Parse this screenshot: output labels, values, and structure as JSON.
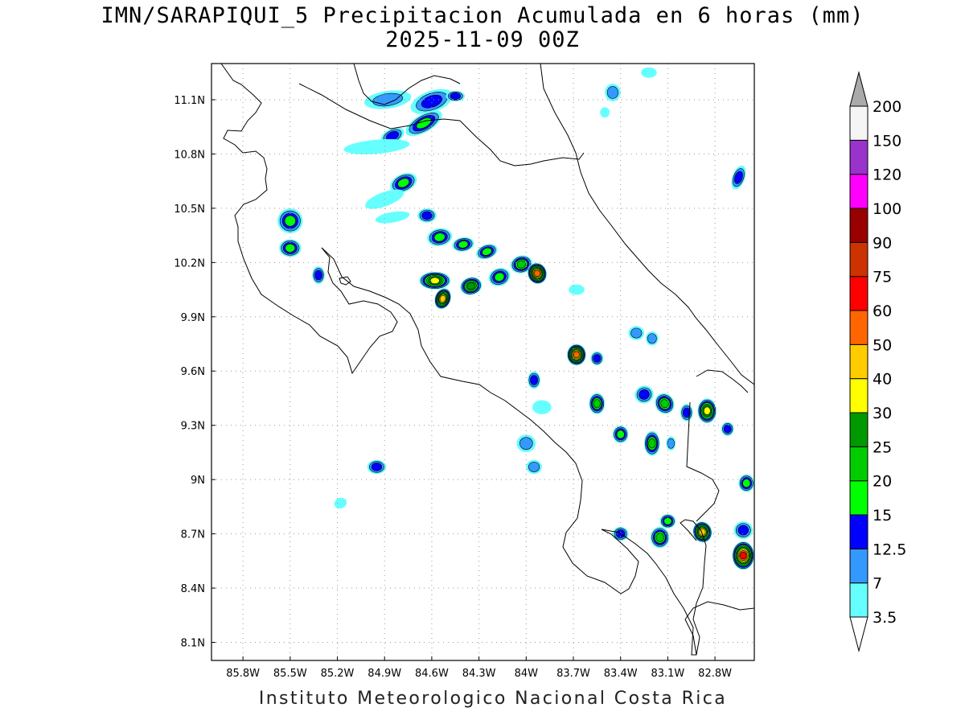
{
  "title": {
    "line1": "IMN/SARAPIQUI_5 Precipitacion Acumulada en 6 horas (mm)",
    "line2": "2025-11-09 00Z"
  },
  "footer": "Instituto Meteorologico Nacional Costa Rica",
  "map": {
    "lon_range": [
      -86.0,
      -82.55
    ],
    "lat_range": [
      8.0,
      11.3
    ],
    "lon_ticks": [
      {
        "value": -85.8,
        "label": "85.8W"
      },
      {
        "value": -85.5,
        "label": "85.5W"
      },
      {
        "value": -85.2,
        "label": "85.2W"
      },
      {
        "value": -84.9,
        "label": "84.9W"
      },
      {
        "value": -84.6,
        "label": "84.6W"
      },
      {
        "value": -84.3,
        "label": "84.3W"
      },
      {
        "value": -84.0,
        "label": "84W"
      },
      {
        "value": -83.7,
        "label": "83.7W"
      },
      {
        "value": -83.4,
        "label": "83.4W"
      },
      {
        "value": -83.1,
        "label": "83.1W"
      },
      {
        "value": -82.8,
        "label": "82.8W"
      }
    ],
    "lat_ticks": [
      {
        "value": 11.1,
        "label": "11.1N"
      },
      {
        "value": 10.8,
        "label": "10.8N"
      },
      {
        "value": 10.5,
        "label": "10.5N"
      },
      {
        "value": 10.2,
        "label": "10.2N"
      },
      {
        "value": 9.9,
        "label": "9.9N"
      },
      {
        "value": 9.6,
        "label": "9.6N"
      },
      {
        "value": 9.3,
        "label": "9.3N"
      },
      {
        "value": 9.0,
        "label": "9N"
      },
      {
        "value": 8.7,
        "label": "8.7N"
      },
      {
        "value": 8.4,
        "label": "8.4N"
      },
      {
        "value": 8.1,
        "label": "8.1N"
      }
    ],
    "grid": true
  },
  "colorbar": {
    "levels": [
      "3.5",
      "7",
      "12.5",
      "15",
      "20",
      "25",
      "30",
      "40",
      "50",
      "60",
      "75",
      "90",
      "100",
      "120",
      "150",
      "200"
    ],
    "colors": [
      "#66ffff",
      "#3399ff",
      "#0000ff",
      "#00ff00",
      "#00cc00",
      "#009900",
      "#ffff00",
      "#ffcc00",
      "#ff6600",
      "#ff0000",
      "#cc3300",
      "#990000",
      "#ff00ff",
      "#9933cc",
      "#f5f5f5"
    ],
    "over_color": "#aaaaaa",
    "under_color": "#ffffff"
  },
  "precip_cells": [
    {
      "lon": -84.88,
      "lat": 11.1,
      "rx": 0.14,
      "ry": 0.04,
      "rot": -8,
      "level": 1
    },
    {
      "lon": -84.6,
      "lat": 11.09,
      "rx": 0.13,
      "ry": 0.05,
      "rot": -20,
      "level": 2
    },
    {
      "lon": -84.45,
      "lat": 11.12,
      "rx": 0.05,
      "ry": 0.02,
      "rot": 0,
      "level": 2
    },
    {
      "lon": -84.65,
      "lat": 10.97,
      "rx": 0.12,
      "ry": 0.04,
      "rot": -30,
      "level": 3
    },
    {
      "lon": -84.85,
      "lat": 10.9,
      "rx": 0.07,
      "ry": 0.03,
      "rot": -25,
      "level": 2
    },
    {
      "lon": -84.95,
      "lat": 10.84,
      "rx": 0.2,
      "ry": 0.03,
      "rot": -5,
      "level": 0
    },
    {
      "lon": -84.78,
      "lat": 10.64,
      "rx": 0.08,
      "ry": 0.04,
      "rot": -25,
      "level": 3
    },
    {
      "lon": -84.9,
      "lat": 10.55,
      "rx": 0.12,
      "ry": 0.03,
      "rot": -20,
      "level": 0
    },
    {
      "lon": -85.5,
      "lat": 10.43,
      "rx": 0.07,
      "ry": 0.06,
      "rot": 0,
      "level": 3
    },
    {
      "lon": -85.5,
      "lat": 10.28,
      "rx": 0.06,
      "ry": 0.04,
      "rot": 0,
      "level": 3
    },
    {
      "lon": -85.32,
      "lat": 10.13,
      "rx": 0.03,
      "ry": 0.04,
      "rot": 0,
      "level": 2
    },
    {
      "lon": -84.63,
      "lat": 10.46,
      "rx": 0.05,
      "ry": 0.03,
      "rot": 0,
      "level": 2
    },
    {
      "lon": -84.85,
      "lat": 10.45,
      "rx": 0.1,
      "ry": 0.02,
      "rot": -10,
      "level": 0
    },
    {
      "lon": -84.55,
      "lat": 10.34,
      "rx": 0.07,
      "ry": 0.04,
      "rot": -10,
      "level": 3
    },
    {
      "lon": -84.4,
      "lat": 10.3,
      "rx": 0.06,
      "ry": 0.03,
      "rot": -10,
      "level": 3
    },
    {
      "lon": -84.25,
      "lat": 10.26,
      "rx": 0.06,
      "ry": 0.03,
      "rot": -20,
      "level": 3
    },
    {
      "lon": -84.58,
      "lat": 10.1,
      "rx": 0.09,
      "ry": 0.04,
      "rot": 0,
      "level": 6
    },
    {
      "lon": -84.53,
      "lat": 10.0,
      "rx": 0.04,
      "ry": 0.05,
      "rot": 20,
      "level": 7
    },
    {
      "lon": -84.35,
      "lat": 10.07,
      "rx": 0.06,
      "ry": 0.04,
      "rot": -15,
      "level": 5
    },
    {
      "lon": -84.17,
      "lat": 10.12,
      "rx": 0.06,
      "ry": 0.04,
      "rot": -20,
      "level": 3
    },
    {
      "lon": -84.03,
      "lat": 10.19,
      "rx": 0.06,
      "ry": 0.04,
      "rot": -15,
      "level": 4
    },
    {
      "lon": -83.93,
      "lat": 10.14,
      "rx": 0.05,
      "ry": 0.05,
      "rot": -20,
      "level": 8
    },
    {
      "lon": -83.68,
      "lat": 10.05,
      "rx": 0.04,
      "ry": 0.02,
      "rot": 0,
      "level": 0
    },
    {
      "lon": -83.68,
      "lat": 9.69,
      "rx": 0.05,
      "ry": 0.05,
      "rot": 0,
      "level": 8
    },
    {
      "lon": -83.55,
      "lat": 9.67,
      "rx": 0.03,
      "ry": 0.03,
      "rot": 0,
      "level": 2
    },
    {
      "lon": -83.3,
      "lat": 9.81,
      "rx": 0.04,
      "ry": 0.03,
      "rot": 0,
      "level": 1
    },
    {
      "lon": -83.2,
      "lat": 9.78,
      "rx": 0.03,
      "ry": 0.03,
      "rot": 0,
      "level": 1
    },
    {
      "lon": -83.95,
      "lat": 9.55,
      "rx": 0.03,
      "ry": 0.04,
      "rot": 0,
      "level": 2
    },
    {
      "lon": -83.55,
      "lat": 9.42,
      "rx": 0.04,
      "ry": 0.05,
      "rot": 0,
      "level": 4
    },
    {
      "lon": -83.25,
      "lat": 9.47,
      "rx": 0.05,
      "ry": 0.04,
      "rot": -20,
      "level": 2
    },
    {
      "lon": -83.12,
      "lat": 9.42,
      "rx": 0.05,
      "ry": 0.05,
      "rot": -30,
      "level": 4
    },
    {
      "lon": -82.98,
      "lat": 9.37,
      "rx": 0.03,
      "ry": 0.04,
      "rot": 0,
      "level": 2
    },
    {
      "lon": -82.85,
      "lat": 9.38,
      "rx": 0.05,
      "ry": 0.06,
      "rot": 0,
      "level": 6
    },
    {
      "lon": -82.72,
      "lat": 9.28,
      "rx": 0.03,
      "ry": 0.03,
      "rot": 0,
      "level": 2
    },
    {
      "lon": -83.4,
      "lat": 9.25,
      "rx": 0.04,
      "ry": 0.04,
      "rot": 0,
      "level": 3
    },
    {
      "lon": -83.2,
      "lat": 9.2,
      "rx": 0.04,
      "ry": 0.06,
      "rot": 0,
      "level": 4
    },
    {
      "lon": -83.08,
      "lat": 9.2,
      "rx": 0.02,
      "ry": 0.03,
      "rot": 0,
      "level": 1
    },
    {
      "lon": -83.9,
      "lat": 9.4,
      "rx": 0.05,
      "ry": 0.03,
      "rot": 0,
      "level": 0
    },
    {
      "lon": -84.0,
      "lat": 9.2,
      "rx": 0.05,
      "ry": 0.04,
      "rot": 0,
      "level": 1
    },
    {
      "lon": -83.95,
      "lat": 9.07,
      "rx": 0.04,
      "ry": 0.03,
      "rot": 0,
      "level": 1
    },
    {
      "lon": -84.95,
      "lat": 9.07,
      "rx": 0.05,
      "ry": 0.03,
      "rot": 0,
      "level": 2
    },
    {
      "lon": -85.18,
      "lat": 8.87,
      "rx": 0.03,
      "ry": 0.02,
      "rot": -20,
      "level": 0
    },
    {
      "lon": -83.4,
      "lat": 8.7,
      "rx": 0.04,
      "ry": 0.03,
      "rot": 0,
      "level": 2
    },
    {
      "lon": -83.15,
      "lat": 8.68,
      "rx": 0.05,
      "ry": 0.05,
      "rot": 0,
      "level": 4
    },
    {
      "lon": -83.1,
      "lat": 8.77,
      "rx": 0.04,
      "ry": 0.03,
      "rot": 0,
      "level": 3
    },
    {
      "lon": -82.88,
      "lat": 8.71,
      "rx": 0.05,
      "ry": 0.05,
      "rot": -20,
      "level": 7
    },
    {
      "lon": -82.62,
      "lat": 8.58,
      "rx": 0.06,
      "ry": 0.07,
      "rot": 0,
      "level": 9
    },
    {
      "lon": -82.62,
      "lat": 8.72,
      "rx": 0.05,
      "ry": 0.04,
      "rot": 0,
      "level": 2
    },
    {
      "lon": -82.6,
      "lat": 8.98,
      "rx": 0.04,
      "ry": 0.04,
      "rot": 0,
      "level": 3
    },
    {
      "lon": -82.65,
      "lat": 10.67,
      "rx": 0.03,
      "ry": 0.06,
      "rot": 20,
      "level": 2
    },
    {
      "lon": -83.45,
      "lat": 11.14,
      "rx": 0.04,
      "ry": 0.04,
      "rot": 0,
      "level": 1
    },
    {
      "lon": -83.5,
      "lat": 11.03,
      "rx": 0.02,
      "ry": 0.02,
      "rot": 0,
      "level": 0
    },
    {
      "lon": -83.22,
      "lat": 11.25,
      "rx": 0.04,
      "ry": 0.02,
      "rot": 0,
      "level": 0
    }
  ]
}
